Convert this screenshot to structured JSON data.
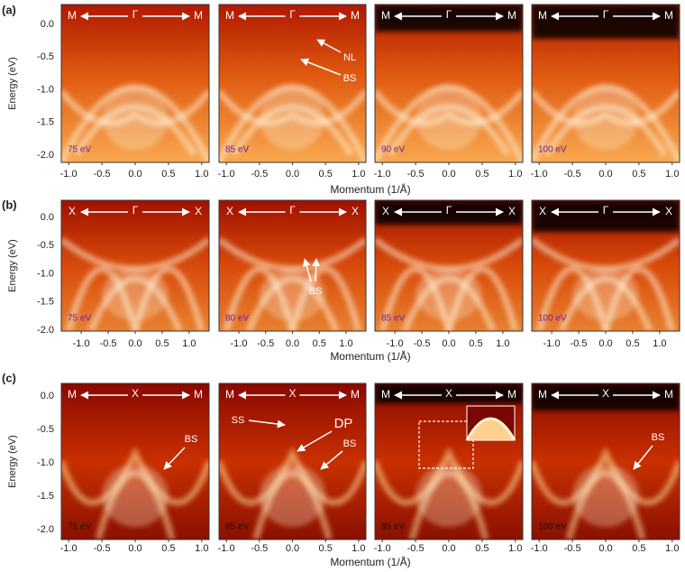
{
  "figure": {
    "x_title": "Momentum (1/Å)",
    "y_title": "Energy (eV)",
    "rows": [
      {
        "label": "(a)",
        "yticks": [
          "0.0",
          "-0.5",
          "-1.0",
          "-1.5",
          "-2.0"
        ],
        "xticks": [
          "-1.0",
          "-0.5",
          "0.0",
          "0.5",
          "1.0"
        ],
        "panels": [
          {
            "symmetry": [
              "M",
              "Γ",
              "M"
            ],
            "energy": "75 eV"
          },
          {
            "symmetry": [
              "M",
              "Γ",
              "M"
            ],
            "energy": "85 eV",
            "annotations": [
              "NL",
              "BS"
            ]
          },
          {
            "symmetry": [
              "M",
              "Γ",
              "M"
            ],
            "energy": "90 eV"
          },
          {
            "symmetry": [
              "M",
              "Γ",
              "M"
            ],
            "energy": "100 eV"
          }
        ]
      },
      {
        "label": "(b)",
        "yticks": [
          "0.0",
          "-0.5",
          "-1.0",
          "-1.5",
          "-2.0"
        ],
        "xticks": [
          "-1.0",
          "-0.5",
          "0.0",
          "0.5",
          "1.0"
        ],
        "panels": [
          {
            "symmetry": [
              "X",
              "Γ",
              "X"
            ],
            "energy": "75 eV"
          },
          {
            "symmetry": [
              "X",
              "Γ",
              "X"
            ],
            "energy": "80 eV",
            "annotations": [
              "BS"
            ]
          },
          {
            "symmetry": [
              "X",
              "Γ",
              "X"
            ],
            "energy": "85 eV"
          },
          {
            "symmetry": [
              "X",
              "Γ",
              "X"
            ],
            "energy": "100 eV"
          }
        ]
      },
      {
        "label": "(c)",
        "yticks": [
          "0.0",
          "-0.5",
          "-1.0",
          "-1.5",
          "-2.0"
        ],
        "xticks": [
          "-1.0",
          "-0.5",
          "0.0",
          "0.5",
          "1.0"
        ],
        "panels": [
          {
            "symmetry": [
              "M",
              "X",
              "M"
            ],
            "energy": "75 eV",
            "annotations": [
              "BS"
            ]
          },
          {
            "symmetry": [
              "M",
              "X",
              "M"
            ],
            "energy": "85 eV",
            "annotations": [
              "SS",
              "DP",
              "BS"
            ]
          },
          {
            "symmetry": [
              "M",
              "X",
              "M"
            ],
            "energy": "95 eV"
          },
          {
            "symmetry": [
              "M",
              "X",
              "M"
            ],
            "energy": "100 eV",
            "annotations": [
              "BS"
            ]
          }
        ]
      }
    ]
  }
}
